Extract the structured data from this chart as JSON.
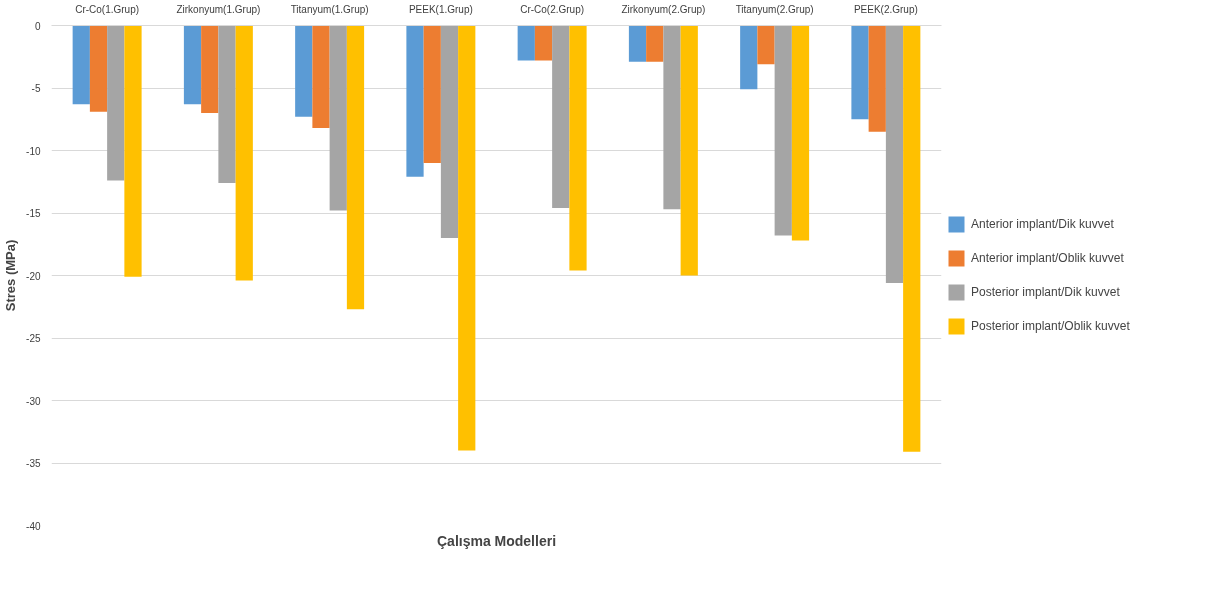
{
  "chart_data": {
    "type": "bar",
    "xlabel": "Çalışma Modelleri",
    "ylabel": "Stres (MPa)",
    "categories": [
      "Cr-Co(1.Grup)",
      "Zirkonyum(1.Grup)",
      "Titanyum(1.Grup)",
      "PEEK(1.Grup)",
      "Cr-Co(2.Grup)",
      "Zirkonyum(2.Grup)",
      "Titanyum(2.Grup)",
      "PEEK(2.Grup)"
    ],
    "series": [
      {
        "name": "Anterior implant/Dik kuvvet",
        "color": "#5b9bd5",
        "values": [
          -6.3,
          -6.3,
          -7.3,
          -12.1,
          -2.8,
          -2.9,
          -5.1,
          -7.5
        ]
      },
      {
        "name": "Anterior implant/Oblik kuvvet",
        "color": "#ed7d31",
        "values": [
          -6.9,
          -7.0,
          -8.2,
          -11.0,
          -2.8,
          -2.9,
          -3.1,
          -8.5
        ]
      },
      {
        "name": "Posterior implant/Dik kuvvet",
        "color": "#a5a5a5",
        "values": [
          -12.4,
          -12.6,
          -14.8,
          -17.0,
          -14.6,
          -14.7,
          -16.8,
          -20.6
        ]
      },
      {
        "name": "Posterior implant/Oblik kuvvet",
        "color": "#ffc000",
        "values": [
          -20.1,
          -20.4,
          -22.7,
          -34.0,
          -19.6,
          -20.0,
          -17.2,
          -34.1
        ]
      }
    ],
    "ylim": [
      -40,
      0
    ],
    "yticks": [
      -40,
      -35,
      -30,
      -25,
      -20,
      -15,
      -10,
      -5,
      0
    ],
    "grid": "y",
    "legend": "right"
  }
}
